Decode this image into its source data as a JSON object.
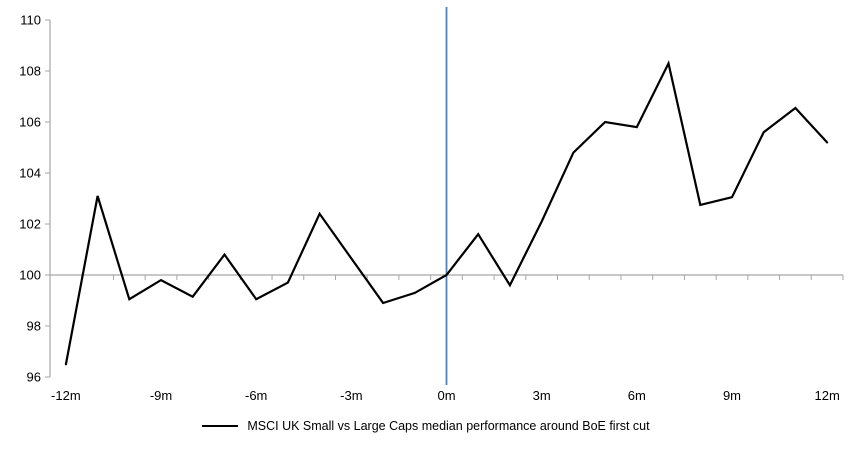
{
  "chart_data": {
    "type": "line",
    "title": "",
    "xlabel": "",
    "ylabel": "",
    "x": [
      -12,
      -11,
      -10,
      -9,
      -8,
      -7,
      -6,
      -5,
      -4,
      -3,
      -2,
      -1,
      0,
      1,
      2,
      3,
      4,
      5,
      6,
      7,
      8,
      9,
      10,
      11,
      12
    ],
    "series": [
      {
        "name": "MSCI UK Small vs Large Caps median performance around BoE first cut",
        "values": [
          96.5,
          103.1,
          99.05,
          99.8,
          99.15,
          100.8,
          99.05,
          99.7,
          102.4,
          100.65,
          98.9,
          99.3,
          100.0,
          101.6,
          99.6,
          102.1,
          104.8,
          106.0,
          105.8,
          108.3,
          102.75,
          103.05,
          105.6,
          106.55,
          105.2
        ]
      }
    ],
    "x_tick_months": [
      -12,
      -9,
      -6,
      -3,
      0,
      3,
      6,
      9,
      12
    ],
    "x_tick_labels": [
      "-12m",
      "-9m",
      "-6m",
      "-3m",
      "0m",
      "3m",
      "6m",
      "9m",
      "12m"
    ],
    "y_ticks": [
      96,
      98,
      100,
      102,
      104,
      106,
      108,
      110
    ],
    "y_tick_labels": [
      "96",
      "98",
      "100",
      "102",
      "104",
      "106",
      "108",
      "110"
    ],
    "ylim": [
      96,
      110
    ],
    "baseline_value": 100,
    "event_line_month": 0,
    "grid": "off",
    "legend_position": "bottom-center",
    "colors": {
      "series": "#000000",
      "event_line": "#4f81bd",
      "axis": "#a6a6a6",
      "baseline": "#a6a6a6",
      "text": "#000000"
    }
  }
}
